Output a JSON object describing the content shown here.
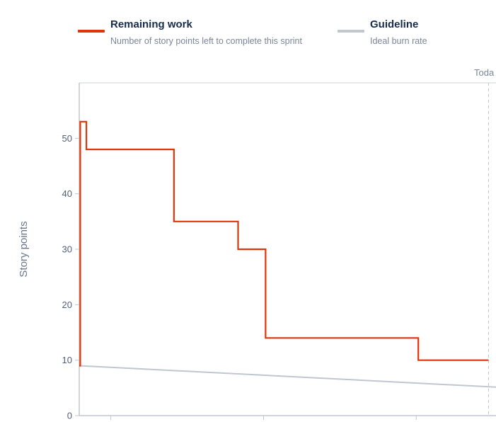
{
  "legend": {
    "remaining": {
      "title": "Remaining work",
      "description": "Number of story points left to complete this sprint",
      "color": "#de350b"
    },
    "guideline": {
      "title": "Guideline",
      "description": "Ideal burn rate",
      "color": "#c1c7d0"
    }
  },
  "today_label": "Toda",
  "chart_data": {
    "type": "line",
    "ylabel": "Story points",
    "ylim": [
      0,
      60
    ],
    "yticks": [
      0,
      10,
      20,
      30,
      40,
      50
    ],
    "grid": false,
    "legend_position": "top",
    "series": [
      {
        "name": "Remaining work",
        "color": "#de350b",
        "step": true,
        "x": [
          0,
          0.7,
          1.9,
          2.2,
          2.9,
          3.3,
          5.9,
          8.0,
          11.8
        ],
        "values": [
          9,
          53,
          48,
          35,
          30,
          14,
          10,
          10,
          10
        ]
      },
      {
        "name": "Guideline",
        "color": "#c1c7d0",
        "step": false,
        "x": [
          0,
          0.7,
          1.9,
          2.2,
          2.9,
          3.3,
          5.9,
          8.0,
          11.8
        ],
        "values": [
          9,
          8.8,
          8.6,
          8.3,
          7.8,
          7.5,
          6.2,
          5.6,
          5.2
        ]
      }
    ],
    "step_change_points": [
      {
        "x": 0,
        "value": 9
      },
      {
        "x": 0.1,
        "value": 53
      },
      {
        "x": 0.7,
        "value": 48
      },
      {
        "x": 9.3,
        "value": 35
      },
      {
        "x": 15.6,
        "value": 30
      },
      {
        "x": 18.3,
        "value": 14
      },
      {
        "x": 33.3,
        "value": 10
      },
      {
        "x": 40.2,
        "value": 10
      }
    ],
    "guideline_points": [
      {
        "x": 0,
        "value": 9
      },
      {
        "x": 40.2,
        "value": 5.2
      }
    ],
    "xlim": [
      0,
      40.2
    ],
    "today_x": 40.2,
    "x_ticks_positions": [
      3.1,
      18.1,
      33.1
    ]
  }
}
